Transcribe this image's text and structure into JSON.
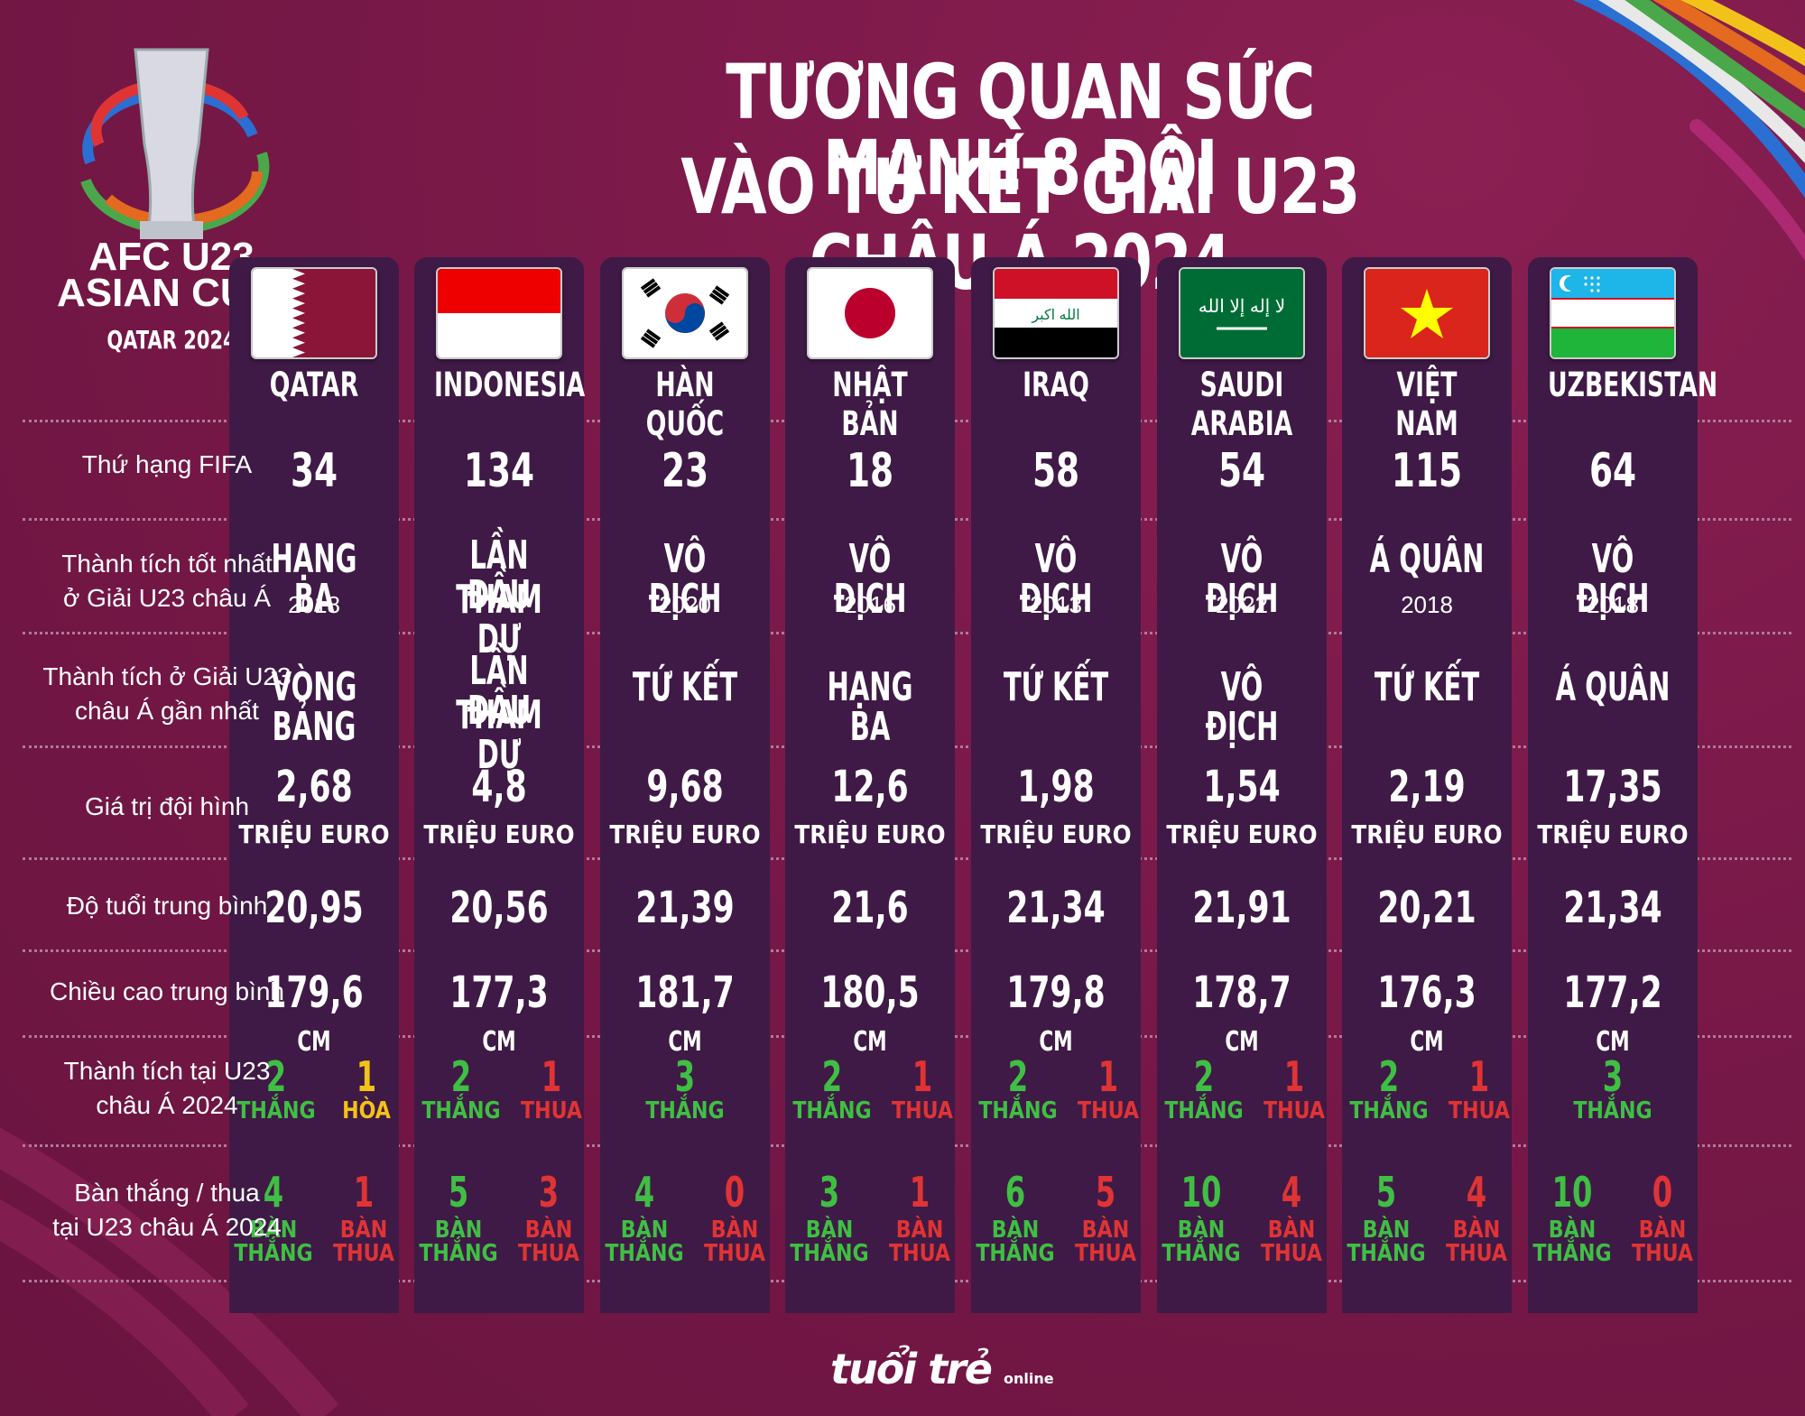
{
  "title_line1": "TƯƠNG QUAN SỨC MẠNH 8 ĐỘI",
  "title_line2": "VÀO TỨ KẾT GIẢI U23 CHÂU Á 2024",
  "logo": {
    "line1": "AFC U23",
    "line2": "ASIAN CUP",
    "tm": "™",
    "line3": "QATAR 2024"
  },
  "footer": {
    "brand": "tuổi trẻ",
    "sub": "online"
  },
  "row_labels": {
    "fifa": "Thứ hạng FIFA",
    "best": [
      "Thành tích tốt nhất",
      "ở Giải U23 châu Á"
    ],
    "recent": [
      "Thành tích ở Giải U23",
      "châu Á gần nhất"
    ],
    "value": "Giá trị đội hình",
    "age": "Độ tuổi trung bình",
    "height": "Chiều cao trung bình",
    "record": [
      "Thành tích tại U23",
      "châu Á 2024"
    ],
    "goals": [
      "Bàn thắng / thua",
      "tại U23 châu Á 2024"
    ]
  },
  "units": {
    "value": "TRIỆU EURO",
    "height": "CM",
    "ban": "BÀN",
    "thang": "THẮNG",
    "thua": "THUA",
    "hoa": "HÒA"
  },
  "colors": {
    "background": "#7b1a49",
    "column": "#3f1a46",
    "win": "#3fbf43",
    "loss": "#e03434",
    "draw": "#f2c21a"
  },
  "teams": [
    {
      "name": "QATAR",
      "flag": "qatar-flag",
      "fifa": "34",
      "best": [
        "HẠNG BA"
      ],
      "best_year": "2018",
      "recent": [
        "VÒNG BẢNG"
      ],
      "value": "2,68",
      "age": "20,95",
      "height": "179,6",
      "record": [
        {
          "n": "2",
          "label": "THẮNG",
          "color": "green"
        },
        {
          "n": "1",
          "label": "HÒA",
          "color": "yellow"
        }
      ],
      "goals_for": "4",
      "goals_against": "1"
    },
    {
      "name": "INDONESIA",
      "flag": "indonesia-flag",
      "fifa": "134",
      "best": [
        "LẦN ĐẦU",
        "THAM DỰ"
      ],
      "best_year": "",
      "recent": [
        "LẦN ĐẦU",
        "THAM DỰ"
      ],
      "value": "4,8",
      "age": "20,56",
      "height": "177,3",
      "record": [
        {
          "n": "2",
          "label": "THẮNG",
          "color": "green"
        },
        {
          "n": "1",
          "label": "THUA",
          "color": "red"
        }
      ],
      "goals_for": "5",
      "goals_against": "3"
    },
    {
      "name": "HÀN QUỐC",
      "flag": "korea-flag",
      "fifa": "23",
      "best": [
        "VÔ ĐỊCH"
      ],
      "best_year": "2020",
      "recent": [
        "TỨ KẾT"
      ],
      "value": "9,68",
      "age": "21,39",
      "height": "181,7",
      "record": [
        {
          "n": "3",
          "label": "THẮNG",
          "color": "green"
        }
      ],
      "goals_for": "4",
      "goals_against": "0"
    },
    {
      "name": "NHẬT BẢN",
      "flag": "japan-flag",
      "fifa": "18",
      "best": [
        "VÔ ĐỊCH"
      ],
      "best_year": "2016",
      "recent": [
        "HẠNG BA"
      ],
      "value": "12,6",
      "age": "21,6",
      "height": "180,5",
      "record": [
        {
          "n": "2",
          "label": "THẮNG",
          "color": "green"
        },
        {
          "n": "1",
          "label": "THUA",
          "color": "red"
        }
      ],
      "goals_for": "3",
      "goals_against": "1"
    },
    {
      "name": "IRAQ",
      "flag": "iraq-flag",
      "fifa": "58",
      "best": [
        "VÔ ĐỊCH"
      ],
      "best_year": "2013",
      "recent": [
        "TỨ KẾT"
      ],
      "value": "1,98",
      "age": "21,34",
      "height": "179,8",
      "record": [
        {
          "n": "2",
          "label": "THẮNG",
          "color": "green"
        },
        {
          "n": "1",
          "label": "THUA",
          "color": "red"
        }
      ],
      "goals_for": "6",
      "goals_against": "5"
    },
    {
      "name": "SAUDI ARABIA",
      "flag": "saudi-flag",
      "fifa": "54",
      "best": [
        "VÔ ĐỊCH"
      ],
      "best_year": "2022",
      "recent": [
        "VÔ ĐỊCH"
      ],
      "value": "1,54",
      "age": "21,91",
      "height": "178,7",
      "record": [
        {
          "n": "2",
          "label": "THẮNG",
          "color": "green"
        },
        {
          "n": "1",
          "label": "THUA",
          "color": "red"
        }
      ],
      "goals_for": "10",
      "goals_against": "4"
    },
    {
      "name": "VIỆT NAM",
      "flag": "vietnam-flag",
      "fifa": "115",
      "best": [
        "Á QUÂN"
      ],
      "best_year": "2018",
      "recent": [
        "TỨ KẾT"
      ],
      "value": "2,19",
      "age": "20,21",
      "height": "176,3",
      "record": [
        {
          "n": "2",
          "label": "THẮNG",
          "color": "green"
        },
        {
          "n": "1",
          "label": "THUA",
          "color": "red"
        }
      ],
      "goals_for": "5",
      "goals_against": "4"
    },
    {
      "name": "UZBEKISTAN",
      "flag": "uzbekistan-flag",
      "fifa": "64",
      "best": [
        "VÔ ĐỊCH"
      ],
      "best_year": "2018",
      "recent": [
        "Á QUÂN"
      ],
      "value": "17,35",
      "age": "21,34",
      "height": "177,2",
      "record": [
        {
          "n": "3",
          "label": "THẮNG",
          "color": "green"
        }
      ],
      "goals_for": "10",
      "goals_against": "0"
    }
  ]
}
